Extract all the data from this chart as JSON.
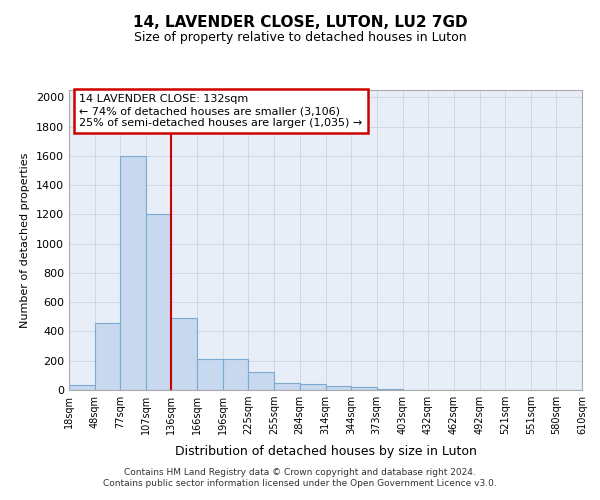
{
  "title": "14, LAVENDER CLOSE, LUTON, LU2 7GD",
  "subtitle": "Size of property relative to detached houses in Luton",
  "xlabel": "Distribution of detached houses by size in Luton",
  "ylabel": "Number of detached properties",
  "footer_line1": "Contains HM Land Registry data © Crown copyright and database right 2024.",
  "footer_line2": "Contains public sector information licensed under the Open Government Licence v3.0.",
  "annotation_line1": "14 LAVENDER CLOSE: 132sqm",
  "annotation_line2": "← 74% of detached houses are smaller (3,106)",
  "annotation_line3": "25% of semi-detached houses are larger (1,035) →",
  "bin_edges": [
    18,
    48,
    77,
    107,
    136,
    166,
    196,
    225,
    255,
    284,
    314,
    344,
    373,
    403,
    432,
    462,
    492,
    521,
    551,
    580,
    610
  ],
  "bar_heights": [
    35,
    460,
    1600,
    1200,
    490,
    210,
    210,
    125,
    50,
    40,
    25,
    20,
    10,
    0,
    0,
    0,
    0,
    0,
    0,
    0
  ],
  "bar_color": "#c8d8ee",
  "bar_edge_color": "#7aaad0",
  "vline_color": "#cc0000",
  "vline_x": 136,
  "annotation_box_color": "#cc0000",
  "annotation_bg": "#ffffff",
  "grid_color": "#d0d8e8",
  "background_color": "#ffffff",
  "axes_bg_color": "#e8eef8",
  "ylim": [
    0,
    2050
  ],
  "yticks": [
    0,
    200,
    400,
    600,
    800,
    1000,
    1200,
    1400,
    1600,
    1800,
    2000
  ]
}
